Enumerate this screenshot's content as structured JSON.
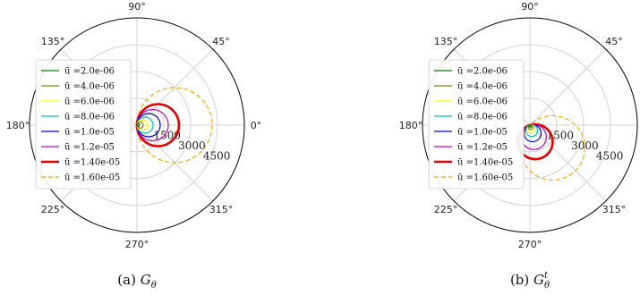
{
  "chart_data": [
    {
      "type": "line",
      "projection": "polar",
      "caption": {
        "label": "(a)",
        "symbol": "G",
        "subscript": "θ",
        "superscript": ""
      },
      "theta_labels": [
        "0°",
        "45°",
        "90°",
        "135°",
        "180°",
        "225°",
        "270°",
        "315°"
      ],
      "r_ticks": [
        1500,
        3000,
        4500
      ],
      "r_tick_labels": [
        "1500",
        "3000",
        "4500"
      ],
      "r_max": 6000,
      "grid": true,
      "legend_position": "left",
      "series": [
        {
          "name": "ū =2.0e-06",
          "color": "#008000",
          "style": "solid",
          "width": 1.2,
          "diameter": 150
        },
        {
          "name": "ū =4.0e-06",
          "color": "#808000",
          "style": "solid",
          "width": 1.2,
          "diameter": 350
        },
        {
          "name": "ū =6.0e-06",
          "color": "#ffff00",
          "style": "solid",
          "width": 1.2,
          "diameter": 600
        },
        {
          "name": "ū =8.0e-06",
          "color": "#00bfbf",
          "style": "solid",
          "width": 1.2,
          "diameter": 900
        },
        {
          "name": "ū =1.0e-05",
          "color": "#0000cd",
          "style": "solid",
          "width": 1.2,
          "diameter": 1300
        },
        {
          "name": "ū =1.2e-05",
          "color": "#bf00bf",
          "style": "solid",
          "width": 1.2,
          "diameter": 1750
        },
        {
          "name": "ū =1.40e-05",
          "color": "#e00000",
          "style": "solid",
          "width": 2.6,
          "diameter": 2350
        },
        {
          "name": "ū =1.60e-05",
          "color": "#ffa500",
          "style": "dashed",
          "width": 1.2,
          "diameter": 4200
        }
      ]
    },
    {
      "type": "line",
      "projection": "polar",
      "caption": {
        "label": "(b)",
        "symbol": "G",
        "subscript": "θ",
        "superscript": "t"
      },
      "theta_labels": [
        "0°",
        "45°",
        "90°",
        "135°",
        "180°",
        "225°",
        "270°",
        "315°"
      ],
      "r_ticks": [
        1500,
        3000,
        4500
      ],
      "r_tick_labels": [
        "1500",
        "3000",
        "4500"
      ],
      "r_max": 6000,
      "grid": true,
      "legend_position": "left",
      "series": [
        {
          "name": "ū =2.0e-06",
          "color": "#008000",
          "style": "solid",
          "width": 1.2,
          "diameter": 120
        },
        {
          "name": "ū =4.0e-06",
          "color": "#808000",
          "style": "solid",
          "width": 1.2,
          "diameter": 250
        },
        {
          "name": "ū =6.0e-06",
          "color": "#ffff00",
          "style": "solid",
          "width": 1.2,
          "diameter": 420
        },
        {
          "name": "ū =8.0e-06",
          "color": "#00bfbf",
          "style": "solid",
          "width": 1.2,
          "diameter": 650
        },
        {
          "name": "ū =1.0e-05",
          "color": "#0000cd",
          "style": "solid",
          "width": 1.2,
          "diameter": 950
        },
        {
          "name": "ū =1.2e-05",
          "color": "#bf00bf",
          "style": "solid",
          "width": 1.2,
          "diameter": 1400
        },
        {
          "name": "ū =1.40e-05",
          "color": "#e00000",
          "style": "solid",
          "width": 2.6,
          "diameter": 1950
        },
        {
          "name": "ū =1.60e-05",
          "color": "#ffa500",
          "style": "dashed",
          "width": 1.2,
          "diameter": 3600
        }
      ]
    }
  ]
}
